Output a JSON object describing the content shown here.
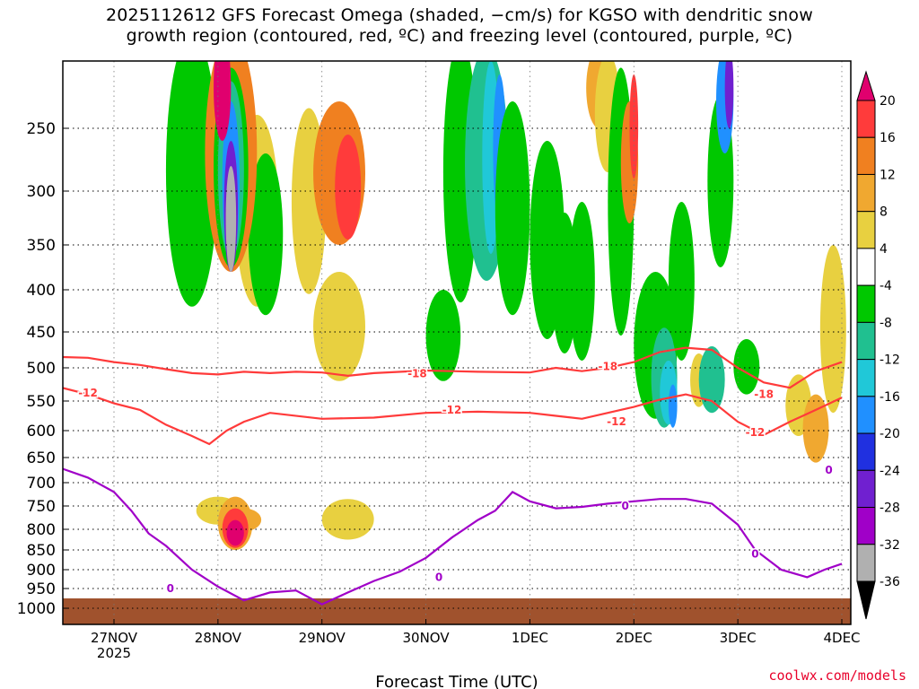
{
  "title": {
    "line1": "2025112612 GFS Forecast Omega (shaded, −cm/s) for KGSO with dendritic snow",
    "line2": "growth region (contoured, red, ºC) and freezing level (contoured, purple, ºC)"
  },
  "credit": "coolwx.com/models",
  "chart_data": {
    "type": "heatmap",
    "xlabel": "Forecast Time (UTC)",
    "ylabel": "",
    "x_ticks": [
      {
        "label": "27NOV",
        "sub": "2025",
        "hours": 12
      },
      {
        "label": "28NOV",
        "sub": "",
        "hours": 36
      },
      {
        "label": "29NOV",
        "sub": "",
        "hours": 60
      },
      {
        "label": "30NOV",
        "sub": "",
        "hours": 84
      },
      {
        "label": "1DEC",
        "sub": "",
        "hours": 108
      },
      {
        "label": "2DEC",
        "sub": "",
        "hours": 132
      },
      {
        "label": "3DEC",
        "sub": "",
        "hours": 156
      },
      {
        "label": "4DEC",
        "sub": "",
        "hours": 180
      }
    ],
    "x_range_hours": [
      0,
      180
    ],
    "y_ticks": [
      250,
      300,
      350,
      400,
      450,
      500,
      550,
      600,
      650,
      700,
      750,
      800,
      850,
      900,
      950,
      1000
    ],
    "y_range_hpa": [
      200,
      1010
    ],
    "ground_hpa": 975,
    "colorbar": {
      "labels": [
        20,
        16,
        12,
        8,
        4,
        -4,
        -8,
        -12,
        -16,
        -20,
        -24,
        -28,
        -32,
        -36
      ],
      "colors": [
        "#e0006e",
        "#ff3b3b",
        "#f08020",
        "#f0a830",
        "#e8d040",
        "#ffffff",
        "#00c800",
        "#20c090",
        "#20c8d8",
        "#2090ff",
        "#2030e0",
        "#7020d0",
        "#a000c8",
        "#b0b0b0",
        "#000000"
      ]
    },
    "colors": {
      "dgz": "#ff3a3a",
      "freezing": "#a000c8",
      "ground": "#a0522d"
    },
    "contours": {
      "dgz_upper": {
        "label": "-18",
        "points": [
          [
            0,
            485
          ],
          [
            6,
            486
          ],
          [
            12,
            492
          ],
          [
            18,
            496
          ],
          [
            24,
            502
          ],
          [
            30,
            508
          ],
          [
            36,
            510
          ],
          [
            42,
            506
          ],
          [
            48,
            508
          ],
          [
            54,
            506
          ],
          [
            60,
            507
          ],
          [
            66,
            512
          ],
          [
            72,
            508
          ],
          [
            84,
            504
          ],
          [
            96,
            506
          ],
          [
            108,
            507
          ],
          [
            114,
            500
          ],
          [
            120,
            505
          ],
          [
            126,
            500
          ],
          [
            132,
            492
          ],
          [
            138,
            478
          ],
          [
            144,
            472
          ],
          [
            150,
            475
          ],
          [
            156,
            500
          ],
          [
            162,
            522
          ],
          [
            168,
            530
          ],
          [
            174,
            505
          ],
          [
            180,
            492
          ]
        ],
        "label_at": [
          [
            82,
            509
          ],
          [
            126,
            498
          ],
          [
            162,
            540
          ]
        ]
      },
      "dgz_lower": {
        "label": "-12",
        "points": [
          [
            0,
            530
          ],
          [
            6,
            540
          ],
          [
            12,
            554
          ],
          [
            18,
            565
          ],
          [
            24,
            590
          ],
          [
            30,
            610
          ],
          [
            34,
            625
          ],
          [
            38,
            600
          ],
          [
            42,
            585
          ],
          [
            48,
            570
          ],
          [
            60,
            580
          ],
          [
            72,
            578
          ],
          [
            84,
            570
          ],
          [
            96,
            568
          ],
          [
            108,
            570
          ],
          [
            114,
            575
          ],
          [
            120,
            580
          ],
          [
            126,
            570
          ],
          [
            132,
            560
          ],
          [
            138,
            548
          ],
          [
            144,
            540
          ],
          [
            150,
            550
          ],
          [
            156,
            585
          ],
          [
            162,
            608
          ],
          [
            168,
            585
          ],
          [
            174,
            565
          ],
          [
            180,
            545
          ]
        ],
        "label_at": [
          [
            6,
            538
          ],
          [
            90,
            565
          ],
          [
            128,
            585
          ],
          [
            160,
            603
          ]
        ]
      },
      "freezing": {
        "label": "0",
        "points": [
          [
            0,
            672
          ],
          [
            6,
            690
          ],
          [
            12,
            720
          ],
          [
            16,
            760
          ],
          [
            20,
            810
          ],
          [
            24,
            840
          ],
          [
            30,
            900
          ],
          [
            36,
            945
          ],
          [
            42,
            980
          ],
          [
            48,
            960
          ],
          [
            54,
            955
          ],
          [
            60,
            990
          ],
          [
            66,
            960
          ],
          [
            72,
            930
          ],
          [
            78,
            905
          ],
          [
            84,
            870
          ],
          [
            90,
            820
          ],
          [
            96,
            780
          ],
          [
            100,
            760
          ],
          [
            104,
            720
          ],
          [
            108,
            740
          ],
          [
            114,
            755
          ],
          [
            120,
            752
          ],
          [
            126,
            745
          ],
          [
            132,
            740
          ],
          [
            138,
            735
          ],
          [
            144,
            735
          ],
          [
            150,
            745
          ],
          [
            156,
            790
          ],
          [
            160,
            850
          ],
          [
            166,
            900
          ],
          [
            172,
            920
          ],
          [
            176,
            900
          ],
          [
            180,
            885
          ]
        ],
        "label_at": [
          [
            25,
            950
          ],
          [
            87,
            920
          ],
          [
            130,
            750
          ],
          [
            160,
            860
          ],
          [
            177,
            675
          ]
        ]
      }
    }
  }
}
